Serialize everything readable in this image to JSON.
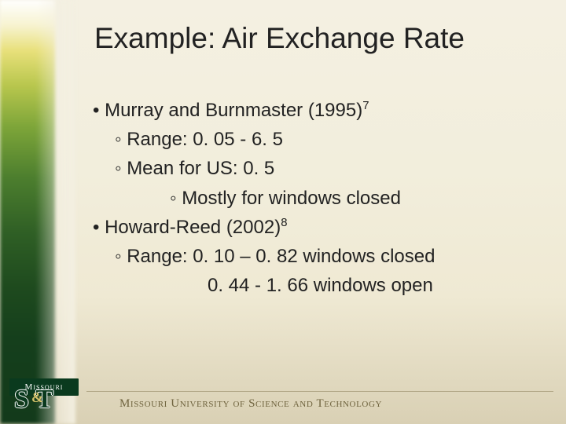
{
  "colors": {
    "title_color": "#222222",
    "body_color": "#222222",
    "footer_text_color": "#6f633e",
    "footer_line_color": "#8a7f58",
    "logo_green": "#0a3a1e",
    "logo_gold": "#d4c26a",
    "left_gradient": [
      "#ffffff",
      "#f7f3d0",
      "#e8e07a",
      "#b9c74e",
      "#7da539",
      "#4c7e2e",
      "#2f5f25",
      "#1e4a1e",
      "#153f1c",
      "#133a1b"
    ],
    "bg_gradient": [
      "#f4f0e2",
      "#f2eedc",
      "#efe9d3",
      "#d9d0b4"
    ]
  },
  "typography": {
    "title_fontsize": 37,
    "body_fontsize": 24,
    "footer_fontsize": 15,
    "font_family_title": "Arial",
    "font_family_footer": "Times New Roman"
  },
  "title": "Example: Air Exchange Rate",
  "bullets": {
    "a": {
      "text": "Murray and Burnmaster (1995)",
      "sup": "7"
    },
    "a1": "Range: 0. 05 - 6. 5",
    "a2": "Mean for US: 0. 5",
    "a2a": "Mostly for windows closed",
    "b": {
      "text": "Howard-Reed (2002)",
      "sup": "8"
    },
    "b1": "Range: 0. 10 – 0. 82  windows closed",
    "b1c": "0. 44 - 1. 66   windows open"
  },
  "footer": {
    "institution": "Missouri University of Science and Technology",
    "logo_top": "Missouri",
    "logo_main": "S&T"
  }
}
